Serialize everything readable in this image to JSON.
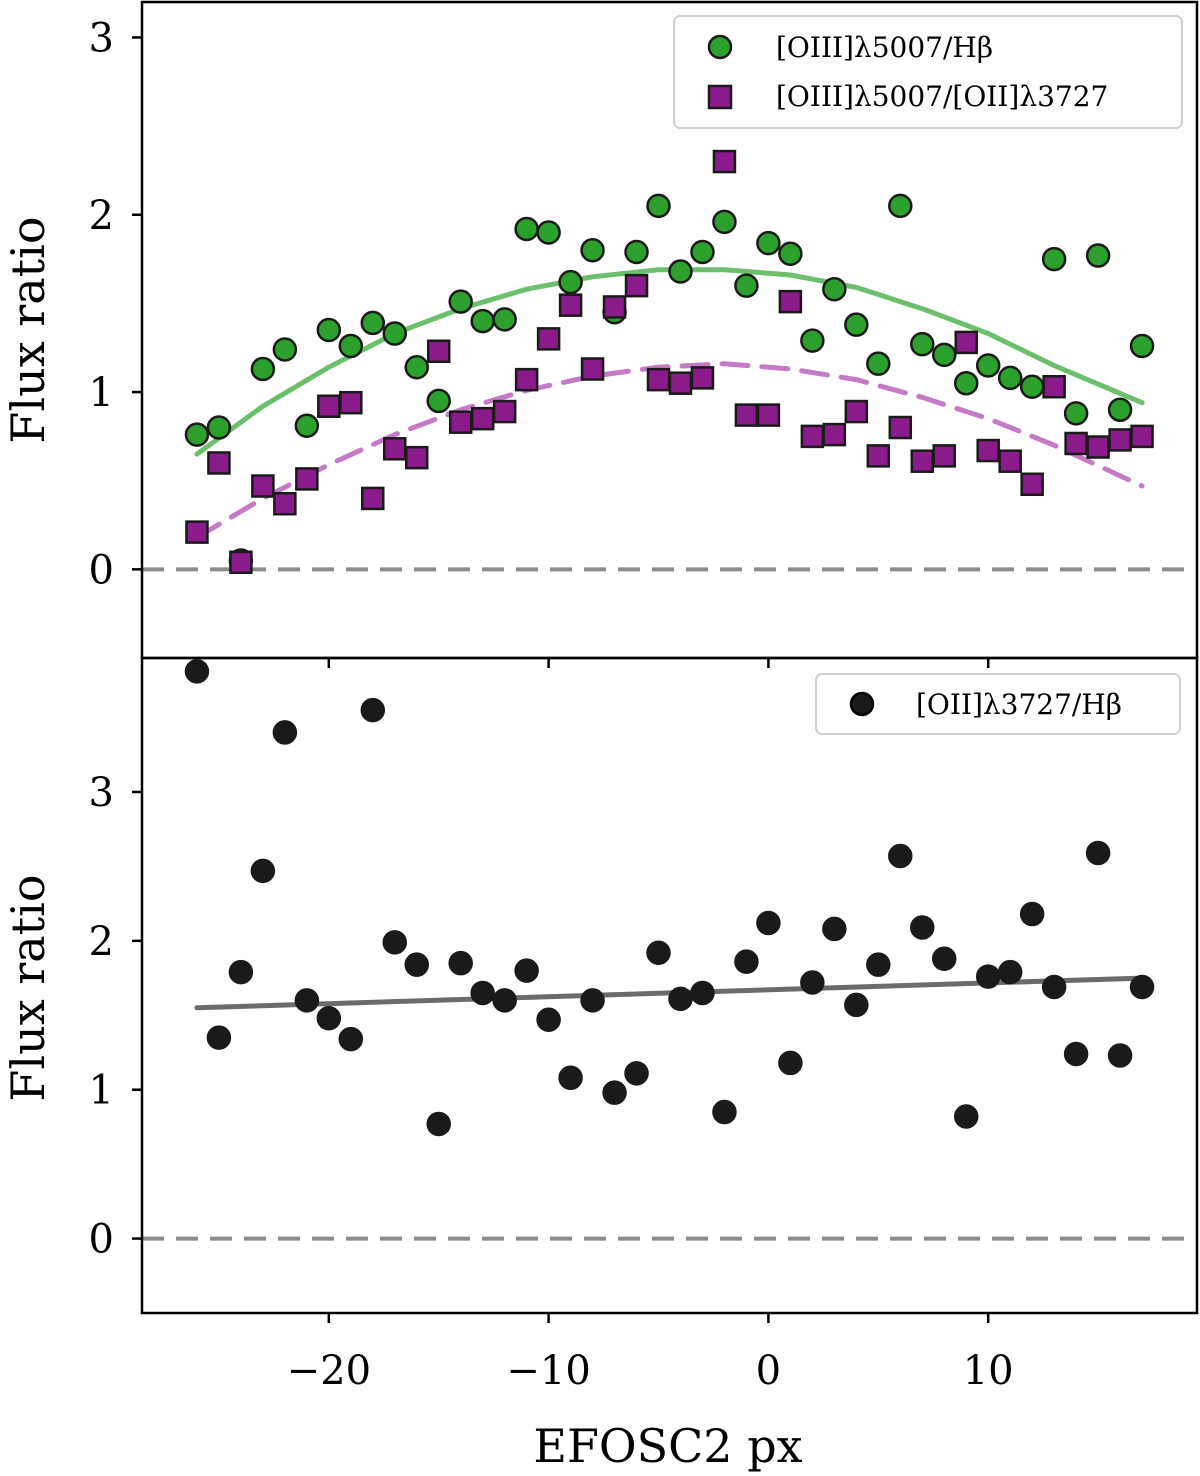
{
  "chart_data": [
    {
      "type": "scatter",
      "panel": "top",
      "ylabel": "Flux ratio",
      "xlim": [
        -28.5,
        19.5
      ],
      "ylim": [
        -0.5,
        3.2
      ],
      "yticks": [
        0,
        1,
        2,
        3
      ],
      "xticks": [
        -20,
        -10,
        0,
        10
      ],
      "xtick_labels": [
        "−20",
        "−10",
        "0",
        "10"
      ],
      "legend_position": "top-right",
      "reference_line": {
        "y": 0,
        "style": "dashed",
        "color": "#8c8c8c"
      },
      "series": [
        {
          "name": "[OIII]λ5007/Hβ",
          "marker": "circle",
          "color": "#2ca02c",
          "x": [
            -26,
            -25,
            -24,
            -23,
            -22,
            -21,
            -20,
            -19,
            -18,
            -17,
            -16,
            -15,
            -14,
            -13,
            -12,
            -11,
            -10,
            -9,
            -8,
            -7,
            -6,
            -5,
            -4,
            -3,
            -2,
            -1,
            0,
            1,
            2,
            3,
            4,
            5,
            6,
            7,
            8,
            9,
            10,
            11,
            12,
            13,
            14,
            15,
            16,
            17
          ],
          "y": [
            0.76,
            0.8,
            0.05,
            1.13,
            1.24,
            0.81,
            1.35,
            1.26,
            1.39,
            1.33,
            1.14,
            0.95,
            1.51,
            1.4,
            1.41,
            1.92,
            1.9,
            1.62,
            1.8,
            1.45,
            1.79,
            2.05,
            1.68,
            1.79,
            1.96,
            1.6,
            1.84,
            1.78,
            1.29,
            1.58,
            1.38,
            1.16,
            2.05,
            1.27,
            1.21,
            1.05,
            1.15,
            1.08,
            1.03,
            1.75,
            0.88,
            1.77,
            0.9,
            1.26
          ]
        },
        {
          "name": "[OIII]λ5007/[OII]λ3727",
          "marker": "square",
          "color": "#8b1a8b",
          "x": [
            -26,
            -25,
            -24,
            -23,
            -22,
            -21,
            -20,
            -19,
            -18,
            -17,
            -16,
            -15,
            -14,
            -13,
            -12,
            -11,
            -10,
            -9,
            -8,
            -7,
            -6,
            -5,
            -4,
            -3,
            -2,
            -1,
            0,
            1,
            2,
            3,
            4,
            5,
            6,
            7,
            8,
            9,
            10,
            11,
            12,
            13,
            14,
            15,
            16,
            17
          ],
          "y": [
            0.21,
            0.6,
            0.04,
            0.47,
            0.37,
            0.51,
            0.92,
            0.94,
            0.4,
            0.68,
            0.63,
            1.23,
            0.83,
            0.85,
            0.89,
            1.07,
            1.3,
            1.49,
            1.13,
            1.48,
            1.6,
            1.07,
            1.05,
            1.08,
            2.3,
            0.87,
            0.87,
            1.51,
            0.75,
            0.76,
            0.89,
            0.64,
            0.8,
            0.61,
            0.64,
            1.28,
            0.67,
            0.61,
            0.48,
            1.03,
            0.71,
            0.69,
            0.73,
            0.75
          ]
        }
      ],
      "fits": [
        {
          "series": "[OIII]λ5007/Hβ",
          "style": "solid",
          "color": "#6cbf6c",
          "x": [
            -26,
            -23,
            -20,
            -17,
            -14,
            -11,
            -8,
            -5,
            -2,
            1,
            4,
            7,
            10,
            13,
            17
          ],
          "y": [
            0.65,
            0.92,
            1.14,
            1.33,
            1.47,
            1.58,
            1.65,
            1.69,
            1.69,
            1.66,
            1.59,
            1.47,
            1.33,
            1.15,
            0.94
          ]
        },
        {
          "series": "[OIII]λ5007/[OII]λ3727",
          "style": "dashed",
          "color": "#c47ac4",
          "x": [
            -26,
            -23,
            -20,
            -17,
            -14,
            -11,
            -8,
            -5,
            -2,
            1,
            4,
            7,
            10,
            13,
            17
          ],
          "y": [
            0.18,
            0.4,
            0.59,
            0.76,
            0.9,
            1.01,
            1.09,
            1.14,
            1.16,
            1.13,
            1.07,
            0.97,
            0.85,
            0.7,
            0.47
          ]
        }
      ]
    },
    {
      "type": "scatter",
      "panel": "bottom",
      "ylabel": "Flux ratio",
      "xlabel": "EFOSC2 px",
      "xlim": [
        -28.5,
        19.5
      ],
      "ylim": [
        -0.5,
        3.9
      ],
      "yticks": [
        0,
        1,
        2,
        3
      ],
      "xticks": [
        -20,
        -10,
        0,
        10
      ],
      "xtick_labels": [
        "−20",
        "−10",
        "0",
        "10"
      ],
      "legend_position": "top-right",
      "reference_line": {
        "y": 0,
        "style": "dashed",
        "color": "#8c8c8c"
      },
      "series": [
        {
          "name": "[OII]λ3727/Hβ",
          "marker": "circle",
          "color": "#1a1a1a",
          "x": [
            -26,
            -25,
            -24,
            -23,
            -22,
            -21,
            -20,
            -19,
            -18,
            -17,
            -16,
            -15,
            -14,
            -13,
            -12,
            -11,
            -10,
            -9,
            -8,
            -7,
            -6,
            -5,
            -4,
            -3,
            -2,
            -1,
            0,
            1,
            2,
            3,
            4,
            5,
            6,
            7,
            8,
            9,
            10,
            11,
            12,
            13,
            14,
            15,
            16,
            17
          ],
          "y": [
            3.81,
            1.35,
            1.79,
            2.47,
            3.4,
            1.6,
            1.48,
            1.34,
            3.55,
            1.99,
            1.84,
            0.77,
            1.85,
            1.65,
            1.6,
            1.8,
            1.47,
            1.08,
            1.6,
            0.98,
            1.11,
            1.92,
            1.61,
            1.65,
            0.85,
            1.86,
            2.12,
            1.18,
            1.72,
            2.08,
            1.57,
            1.84,
            2.57,
            2.09,
            1.88,
            0.82,
            1.76,
            1.79,
            2.18,
            1.69,
            1.24,
            2.59,
            1.23,
            1.69
          ]
        }
      ],
      "fits": [
        {
          "series": "[OII]λ3727/Hβ",
          "style": "solid",
          "color": "#6b6b6b",
          "x": [
            -26,
            17
          ],
          "y": [
            1.55,
            1.75
          ]
        }
      ]
    }
  ]
}
